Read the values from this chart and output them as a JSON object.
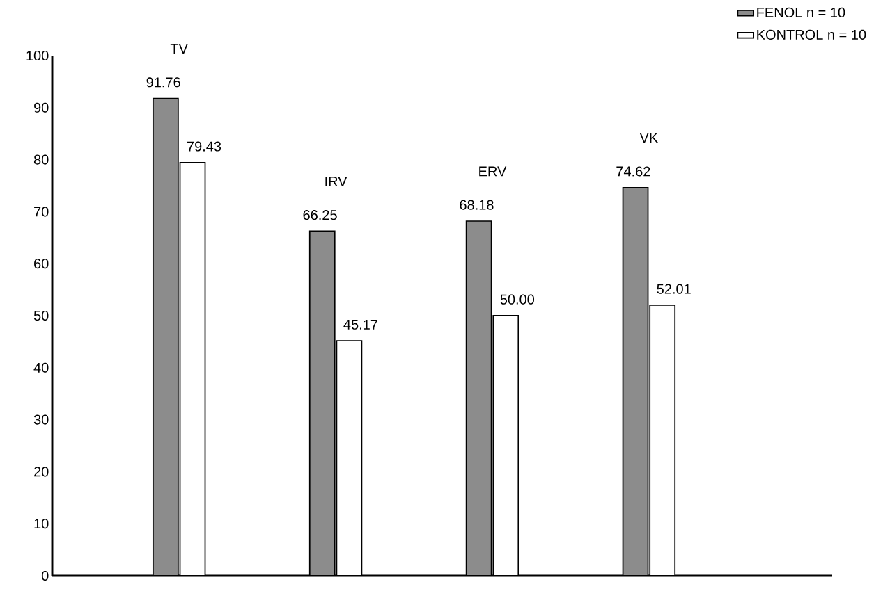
{
  "chart_data": {
    "type": "bar",
    "categories": [
      "TV",
      "IRV",
      "ERV",
      "VK"
    ],
    "series": [
      {
        "name": "FENOL n = 10",
        "color": "#8c8c8c",
        "values": [
          91.76,
          66.25,
          68.18,
          74.62
        ],
        "value_labels": [
          "91.76",
          "66.25",
          "68.18",
          "74.62"
        ]
      },
      {
        "name": "KONTROL n = 10",
        "color": "#ffffff",
        "values": [
          79.43,
          45.17,
          50.0,
          52.01
        ],
        "value_labels": [
          "79.43",
          "45.17",
          "50.00",
          "52.01"
        ]
      }
    ],
    "ylim": [
      0,
      100
    ],
    "yticks": [
      0,
      10,
      20,
      30,
      40,
      50,
      60,
      70,
      80,
      90,
      100
    ],
    "grid": false,
    "legend": "top right"
  }
}
